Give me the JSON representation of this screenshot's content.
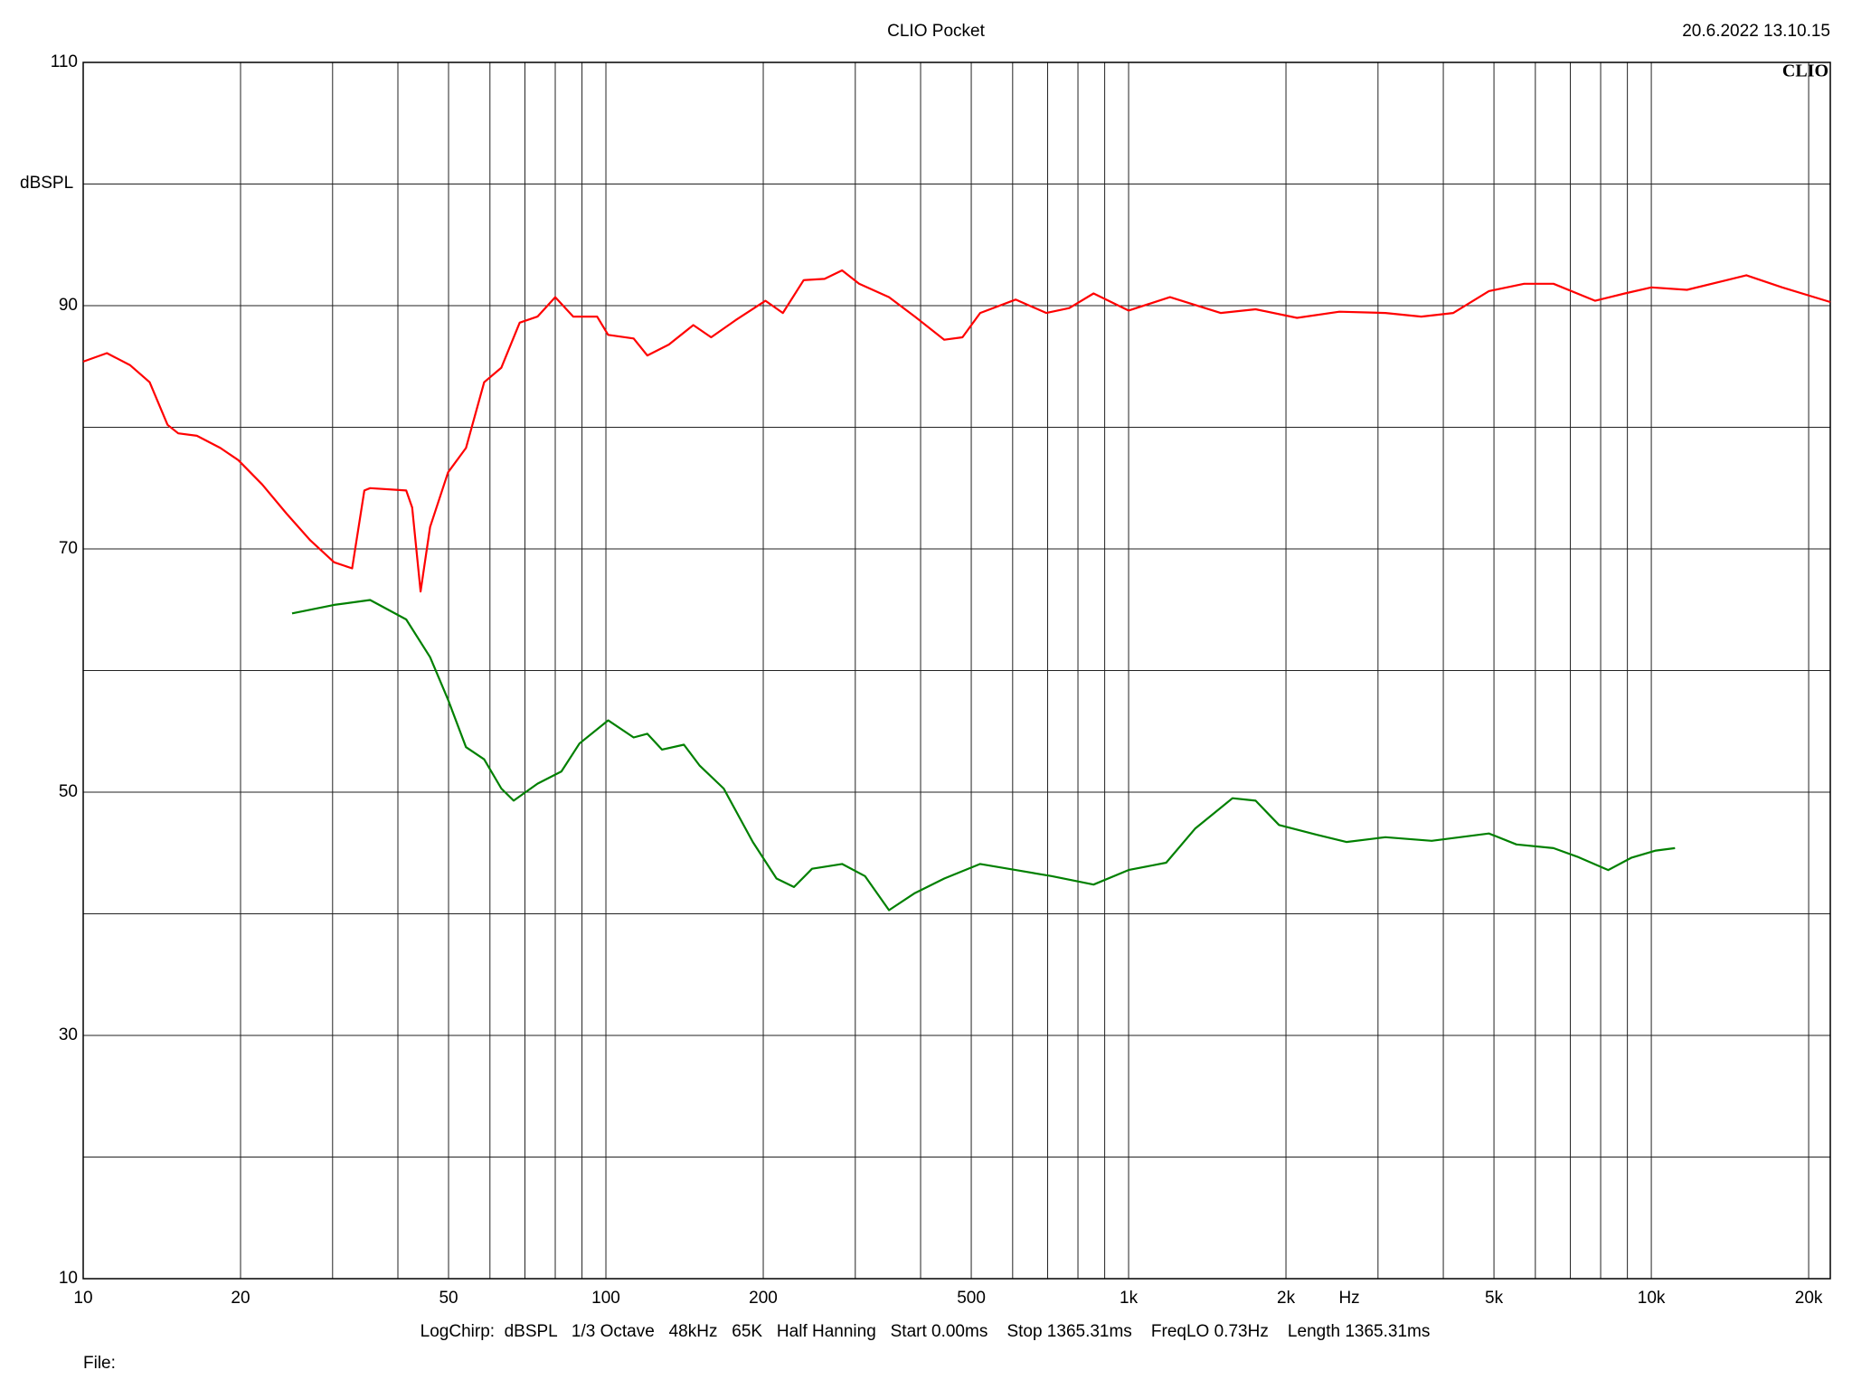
{
  "chart_data": {
    "type": "line",
    "title": "CLIO Pocket",
    "timestamp": "20.6.2022 13.10.15",
    "logo": "CLIO",
    "y_unit_label": "dBSPL",
    "x_unit_label": "Hz",
    "settings_line": "LogChirp:  dBSPL   1/3 Octave   48kHz   65K   Half Hanning   Start 0.00ms    Stop 1365.31ms    FreqLO 0.73Hz    Length 1365.31ms",
    "file_label": "File:",
    "xlog": true,
    "xlim": [
      10,
      22000
    ],
    "ylim": [
      10,
      110
    ],
    "xticks": [
      10,
      20,
      50,
      100,
      200,
      500,
      {
        "value": 1000,
        "label": "1k"
      },
      {
        "value": 2000,
        "label": "2k"
      },
      {
        "value": 5000,
        "label": "5k"
      },
      {
        "value": 10000,
        "label": "10k"
      },
      {
        "value": 20000,
        "label": "20k"
      }
    ],
    "xminor": [
      30,
      40,
      60,
      70,
      80,
      90,
      300,
      400,
      600,
      700,
      800,
      900,
      3000,
      4000,
      6000,
      7000,
      8000,
      9000
    ],
    "yticks": [
      10,
      30,
      50,
      70,
      90,
      110
    ],
    "yminor": [
      20,
      40,
      60,
      80,
      100
    ],
    "grid": true,
    "series": [
      {
        "color": "#ff0000",
        "x": [
          10,
          11.1,
          12.3,
          13.4,
          14.5,
          15.2,
          16.5,
          18.3,
          19.8,
          22,
          24.5,
          27.2,
          30.2,
          32.7,
          34.5,
          35.4,
          41.5,
          42.6,
          44.2,
          46.1,
          49.9,
          54,
          58.5,
          63.1,
          68.4,
          74,
          80,
          86.6,
          96.2,
          101,
          113,
          120,
          132,
          147,
          159,
          177,
          202,
          218,
          239,
          262,
          283,
          305,
          348,
          390,
          444,
          481,
          520,
          608,
          696,
          770,
          857,
          1000,
          1200,
          1500,
          1750,
          2100,
          2530,
          3100,
          3630,
          4180,
          4890,
          5710,
          6500,
          7810,
          8900,
          10000,
          11700,
          15200,
          17800,
          22000
        ],
        "values": [
          85.4,
          86.1,
          85.1,
          83.7,
          80.2,
          79.5,
          79.3,
          78.3,
          77.3,
          75.3,
          72.9,
          70.7,
          68.9,
          68.4,
          74.8,
          75.0,
          74.8,
          73.4,
          66.5,
          71.8,
          76.3,
          78.3,
          83.7,
          84.9,
          88.6,
          89.1,
          90.7,
          89.1,
          89.1,
          87.6,
          87.3,
          85.9,
          86.8,
          88.4,
          87.4,
          88.8,
          90.4,
          89.4,
          92.1,
          92.2,
          92.9,
          91.8,
          90.7,
          89.1,
          87.2,
          87.4,
          89.4,
          90.5,
          89.4,
          89.8,
          91.0,
          89.6,
          90.7,
          89.4,
          89.7,
          89.0,
          89.5,
          89.4,
          89.1,
          89.4,
          91.2,
          91.8,
          91.8,
          90.4,
          91.0,
          91.5,
          91.3,
          92.5,
          91.5,
          90.3
        ]
      },
      {
        "color": "#008000",
        "x": [
          25.1,
          30.2,
          35.4,
          41.5,
          46.1,
          49.9,
          54,
          58.5,
          63.1,
          66.6,
          74,
          82.2,
          89,
          101,
          113,
          120,
          128,
          141,
          151,
          168,
          191,
          212,
          229,
          248,
          283,
          313,
          348,
          390,
          444,
          520,
          608,
          712,
          857,
          1000,
          1180,
          1340,
          1580,
          1750,
          1940,
          2290,
          2610,
          3100,
          3800,
          4890,
          5520,
          6500,
          7210,
          8270,
          9150,
          10200,
          11100
        ],
        "values": [
          64.7,
          65.4,
          65.8,
          64.2,
          61.1,
          57.6,
          53.7,
          52.7,
          50.3,
          49.3,
          50.7,
          51.7,
          54.0,
          55.9,
          54.5,
          54.8,
          53.5,
          53.9,
          52.2,
          50.3,
          45.9,
          42.9,
          42.2,
          43.7,
          44.1,
          43.1,
          40.3,
          41.7,
          42.9,
          44.1,
          43.6,
          43.1,
          42.4,
          43.6,
          44.2,
          47.0,
          49.5,
          49.3,
          47.3,
          46.5,
          45.9,
          46.3,
          46.0,
          46.6,
          45.7,
          45.4,
          44.7,
          43.6,
          44.6,
          45.2,
          45.4
        ]
      }
    ]
  }
}
